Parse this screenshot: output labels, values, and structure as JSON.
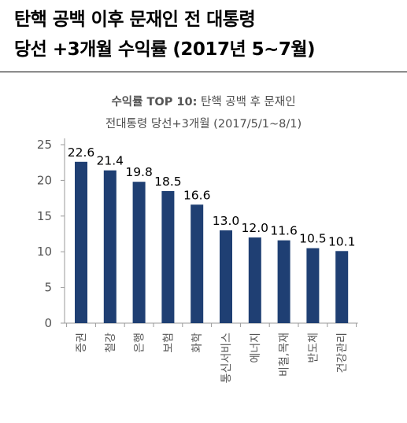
{
  "header": {
    "line1": "탄핵 공백 이후 문재인 전 대통령",
    "line2": "당선 +3개월 수익률 (2017년 5~7월)"
  },
  "chart_data": {
    "type": "bar",
    "title_bold": "수익률 TOP 10:",
    "title_rest": " 탄핵 공백 후 문재인",
    "subtitle": "전대통령 당선+3개월 (2017/5/1~8/1)",
    "categories": [
      "증권",
      "철강",
      "은행",
      "보험",
      "화학",
      "통신서비스",
      "에너지",
      "비철,목재",
      "반도체",
      "건강관리"
    ],
    "values": [
      22.6,
      21.4,
      19.8,
      18.5,
      16.6,
      13.0,
      12.0,
      11.6,
      10.5,
      10.1
    ],
    "value_labels": [
      "22.6",
      "21.4",
      "19.8",
      "18.5",
      "16.6",
      "13.0",
      "12.0",
      "11.6",
      "10.5",
      "10.1"
    ],
    "ylim": [
      0,
      25
    ],
    "yticks": [
      0,
      5,
      10,
      15,
      20,
      25
    ],
    "bar_color": "#1f3f73",
    "axis_color": "#999999",
    "grid": false
  }
}
